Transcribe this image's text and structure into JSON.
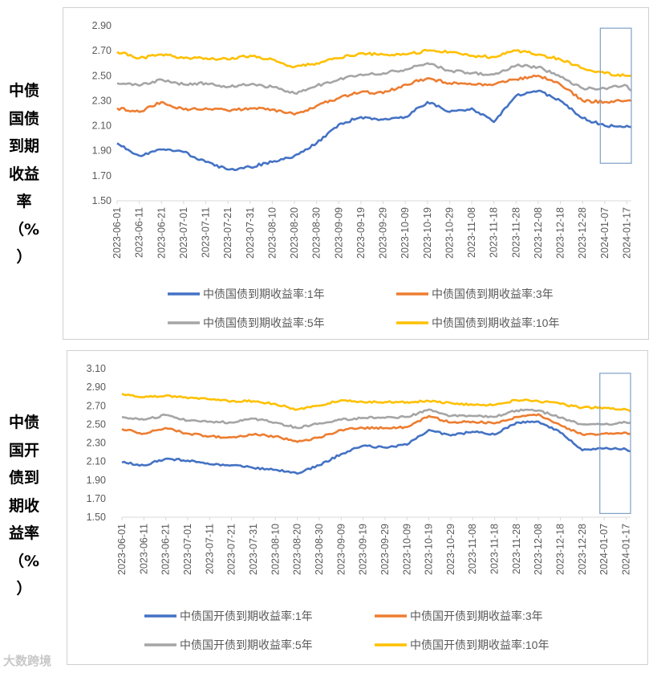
{
  "side_labels": {
    "top": [
      "中债",
      "国债",
      "到期",
      "收益",
      "率",
      "（%",
      "）"
    ],
    "bottom": [
      "中债",
      "国开",
      "债到",
      "期收",
      "益率",
      "（%",
      "）"
    ]
  },
  "watermark": "大数跨境",
  "colors": {
    "1y": "#4472C4",
    "3y": "#ED7D31",
    "5y": "#A5A5A5",
    "10y": "#FFC000",
    "highlight_box": "#7F9FC8"
  },
  "chart_data": [
    {
      "type": "line",
      "title": "",
      "x": [
        "2023-06-01",
        "2023-06-11",
        "2023-06-21",
        "2023-07-01",
        "2023-07-11",
        "2023-07-21",
        "2023-07-31",
        "2023-08-10",
        "2023-08-20",
        "2023-08-30",
        "2023-09-09",
        "2023-09-19",
        "2023-09-29",
        "2023-10-09",
        "2023-10-19",
        "2023-10-29",
        "2023-11-08",
        "2023-11-18",
        "2023-11-28",
        "2023-12-08",
        "2023-12-18",
        "2023-12-28",
        "2024-01-07",
        "2024-01-17",
        "2024-01-19"
      ],
      "x_tick_labels": [
        "2023-06-01",
        "2023-06-11",
        "2023-06-21",
        "2023-07-01",
        "2023-07-11",
        "2023-07-21",
        "2023-07-31",
        "2023-08-10",
        "2023-08-20",
        "2023-08-30",
        "2023-09-09",
        "2023-09-19",
        "2023-09-29",
        "2023-10-09",
        "2023-10-19",
        "2023-10-29",
        "2023-11-08",
        "2023-11-18",
        "2023-11-28",
        "2023-12-08",
        "2023-12-18",
        "2023-12-28",
        "2024-01-07",
        "2024-01-17"
      ],
      "y_ticks": [
        "2.90",
        "2.70",
        "2.50",
        "2.30",
        "2.10",
        "1.90",
        "1.70",
        "1.50"
      ],
      "ylim": [
        1.5,
        2.9
      ],
      "grid": false,
      "legend_position": "bottom",
      "highlight": {
        "from": "2024-01-05",
        "to": "2024-01-19",
        "ymin": 1.8,
        "ymax": 2.88
      },
      "series": [
        {
          "name": "中债国债到期收益率:1年",
          "color_key": "1y",
          "values": [
            1.96,
            1.86,
            1.91,
            1.89,
            1.81,
            1.75,
            1.77,
            1.81,
            1.86,
            1.96,
            2.11,
            2.17,
            2.15,
            2.17,
            2.29,
            2.21,
            2.24,
            2.13,
            2.34,
            2.38,
            2.3,
            2.16,
            2.1,
            2.1,
            2.09
          ]
        },
        {
          "name": "中债国债到期收益率:3年",
          "color_key": "3y",
          "values": [
            2.24,
            2.21,
            2.29,
            2.23,
            2.24,
            2.22,
            2.24,
            2.23,
            2.19,
            2.26,
            2.32,
            2.37,
            2.36,
            2.43,
            2.48,
            2.44,
            2.43,
            2.43,
            2.47,
            2.5,
            2.43,
            2.3,
            2.29,
            2.3,
            2.3
          ]
        },
        {
          "name": "中债国债到期收益率:5年",
          "color_key": "5y",
          "values": [
            2.44,
            2.42,
            2.47,
            2.43,
            2.44,
            2.41,
            2.43,
            2.41,
            2.36,
            2.42,
            2.47,
            2.51,
            2.52,
            2.55,
            2.6,
            2.54,
            2.52,
            2.51,
            2.58,
            2.57,
            2.49,
            2.4,
            2.4,
            2.42,
            2.38
          ]
        },
        {
          "name": "中债国债到期收益率:10年",
          "color_key": "10y",
          "values": [
            2.69,
            2.64,
            2.67,
            2.64,
            2.64,
            2.63,
            2.66,
            2.63,
            2.57,
            2.6,
            2.64,
            2.68,
            2.67,
            2.67,
            2.7,
            2.69,
            2.66,
            2.65,
            2.7,
            2.67,
            2.63,
            2.56,
            2.52,
            2.5,
            2.5
          ]
        }
      ]
    },
    {
      "type": "line",
      "title": "",
      "x": [
        "2023-06-01",
        "2023-06-11",
        "2023-06-21",
        "2023-07-01",
        "2023-07-11",
        "2023-07-21",
        "2023-07-31",
        "2023-08-10",
        "2023-08-20",
        "2023-08-30",
        "2023-09-09",
        "2023-09-19",
        "2023-09-29",
        "2023-10-09",
        "2023-10-19",
        "2023-10-29",
        "2023-11-08",
        "2023-11-18",
        "2023-11-28",
        "2023-12-08",
        "2023-12-18",
        "2023-12-28",
        "2024-01-07",
        "2024-01-17",
        "2024-01-19"
      ],
      "x_tick_labels": [
        "2023-06-01",
        "2023-06-11",
        "2023-06-21",
        "2023-07-01",
        "2023-07-11",
        "2023-07-21",
        "2023-07-31",
        "2023-08-10",
        "2023-08-20",
        "2023-08-30",
        "2023-09-09",
        "2023-09-19",
        "2023-09-29",
        "2023-10-09",
        "2023-10-19",
        "2023-10-29",
        "2023-11-08",
        "2023-11-18",
        "2023-11-28",
        "2023-12-08",
        "2023-12-18",
        "2023-12-28",
        "2024-01-07",
        "2024-01-17"
      ],
      "y_ticks": [
        "3.10",
        "2.90",
        "2.70",
        "2.50",
        "2.30",
        "2.10",
        "1.90",
        "1.70",
        "1.50"
      ],
      "ylim": [
        1.5,
        3.1
      ],
      "grid": false,
      "legend_position": "bottom",
      "highlight": {
        "from": "2024-01-05",
        "to": "2024-01-19",
        "ymin": 1.54,
        "ymax": 3.05
      },
      "series": [
        {
          "name": "中债国开债到期收益率:1年",
          "color_key": "1y",
          "values": [
            2.09,
            2.06,
            2.13,
            2.11,
            2.07,
            2.06,
            2.03,
            2.01,
            1.97,
            2.06,
            2.18,
            2.27,
            2.25,
            2.28,
            2.44,
            2.38,
            2.42,
            2.39,
            2.52,
            2.53,
            2.41,
            2.22,
            2.24,
            2.23,
            2.21
          ]
        },
        {
          "name": "中债国开债到期收益率:3年",
          "color_key": "3y",
          "values": [
            2.45,
            2.4,
            2.46,
            2.4,
            2.37,
            2.36,
            2.39,
            2.37,
            2.31,
            2.36,
            2.44,
            2.46,
            2.46,
            2.47,
            2.59,
            2.52,
            2.53,
            2.51,
            2.58,
            2.61,
            2.49,
            2.39,
            2.4,
            2.41,
            2.4
          ]
        },
        {
          "name": "中债国开债到期收益率:5年",
          "color_key": "5y",
          "values": [
            2.58,
            2.55,
            2.6,
            2.54,
            2.53,
            2.52,
            2.56,
            2.52,
            2.46,
            2.51,
            2.55,
            2.57,
            2.57,
            2.58,
            2.66,
            2.59,
            2.59,
            2.58,
            2.65,
            2.65,
            2.57,
            2.5,
            2.5,
            2.52,
            2.52
          ]
        },
        {
          "name": "中债国开债到期收益率:10年",
          "color_key": "10y",
          "values": [
            2.83,
            2.79,
            2.81,
            2.78,
            2.77,
            2.75,
            2.75,
            2.72,
            2.66,
            2.7,
            2.76,
            2.74,
            2.74,
            2.74,
            2.75,
            2.73,
            2.71,
            2.71,
            2.76,
            2.75,
            2.72,
            2.68,
            2.68,
            2.66,
            2.64
          ]
        }
      ]
    }
  ]
}
